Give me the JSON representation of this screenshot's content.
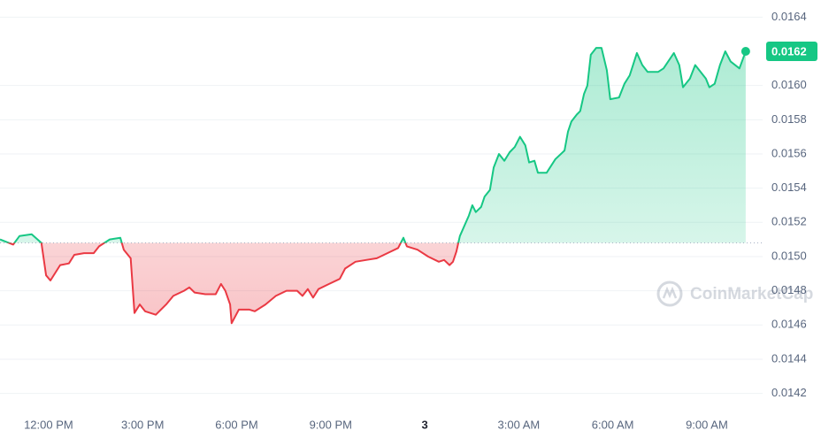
{
  "chart_data": {
    "type": "line",
    "x": [
      -1.55,
      -1.13,
      -0.93,
      -0.54,
      -0.23,
      -0.08,
      0.06,
      0.37,
      0.65,
      0.82,
      1.13,
      1.44,
      1.61,
      1.95,
      2.29,
      2.4,
      2.62,
      2.74,
      2.91,
      3.08,
      3.42,
      3.75,
      3.98,
      4.32,
      4.49,
      4.66,
      5.0,
      5.33,
      5.5,
      5.64,
      5.79,
      5.84,
      6.07,
      6.41,
      6.58,
      6.92,
      7.25,
      7.59,
      7.93,
      8.1,
      8.27,
      8.44,
      8.61,
      8.95,
      9.29,
      9.46,
      9.79,
      10.13,
      10.47,
      10.81,
      11.15,
      11.32,
      11.43,
      11.77,
      12.11,
      12.45,
      12.62,
      12.79,
      12.9,
      13.01,
      13.12,
      13.41,
      13.52,
      13.63,
      13.8,
      13.91,
      14.08,
      14.2,
      14.37,
      14.54,
      14.71,
      14.87,
      15.04,
      15.21,
      15.33,
      15.5,
      15.61,
      15.89,
      16.17,
      16.46,
      16.57,
      16.68,
      16.85,
      16.96,
      17.08,
      17.19,
      17.3,
      17.47,
      17.64,
      17.81,
      17.92,
      18.2,
      18.37,
      18.54,
      18.77,
      18.94,
      19.11,
      19.45,
      19.62,
      19.95,
      20.12,
      20.24,
      20.46,
      20.63,
      20.97,
      21.08,
      21.25,
      21.42,
      21.59,
      21.76,
      22.04,
      22.24
    ],
    "values": [
      0.0151,
      0.01507,
      0.01512,
      0.01513,
      0.01508,
      0.01489,
      0.01486,
      0.01495,
      0.01496,
      0.01501,
      0.01502,
      0.01502,
      0.01506,
      0.0151,
      0.01511,
      0.01504,
      0.01499,
      0.01467,
      0.01472,
      0.01468,
      0.01466,
      0.01472,
      0.01477,
      0.0148,
      0.01482,
      0.01479,
      0.01478,
      0.01478,
      0.01484,
      0.0148,
      0.01472,
      0.01461,
      0.01469,
      0.01469,
      0.01468,
      0.01472,
      0.01477,
      0.0148,
      0.0148,
      0.01477,
      0.01481,
      0.01476,
      0.01481,
      0.01484,
      0.01487,
      0.01493,
      0.01497,
      0.01498,
      0.01499,
      0.01502,
      0.01505,
      0.01511,
      0.01506,
      0.01504,
      0.015,
      0.01497,
      0.01498,
      0.01495,
      0.01497,
      0.01503,
      0.01512,
      0.01524,
      0.0153,
      0.01526,
      0.01529,
      0.01535,
      0.01539,
      0.01552,
      0.0156,
      0.01556,
      0.01561,
      0.01564,
      0.0157,
      0.01565,
      0.01555,
      0.01556,
      0.01549,
      0.01549,
      0.01557,
      0.01562,
      0.01573,
      0.01579,
      0.01583,
      0.01585,
      0.01595,
      0.016,
      0.01618,
      0.01622,
      0.01622,
      0.01609,
      0.01592,
      0.01593,
      0.01601,
      0.01606,
      0.01619,
      0.01612,
      0.01608,
      0.01608,
      0.0161,
      0.01619,
      0.01612,
      0.01599,
      0.01604,
      0.01612,
      0.01604,
      0.01599,
      0.01601,
      0.01612,
      0.0162,
      0.01614,
      0.0161,
      0.0162
    ],
    "baseline": 0.01508,
    "current_price": 0.0162,
    "up_color": "#16c784",
    "down_color": "#ea3943",
    "xlim": [
      -1.55,
      22.78
    ],
    "xticks": [
      {
        "value": 0,
        "label": "12:00 PM"
      },
      {
        "value": 3,
        "label": "3:00 PM"
      },
      {
        "value": 6,
        "label": "6:00 PM"
      },
      {
        "value": 9,
        "label": "9:00 PM"
      },
      {
        "value": 12,
        "label": "3"
      },
      {
        "value": 15,
        "label": "3:00 AM"
      },
      {
        "value": 18,
        "label": "6:00 AM"
      },
      {
        "value": 21,
        "label": "9:00 AM"
      }
    ],
    "ylim": [
      0.01411,
      0.0165
    ],
    "yticks": [
      0.0164,
      {
        "value": 0.016,
        "label": "0.0160"
      },
      0.0158,
      0.0156,
      0.0154,
      0.0152,
      {
        "value": 0.015,
        "label": "0.0150"
      },
      0.0148,
      0.0146,
      0.0144,
      0.0142
    ],
    "yticks_display": [
      0.0162
    ],
    "grid": true,
    "watermark": "CoinMarketCap"
  }
}
